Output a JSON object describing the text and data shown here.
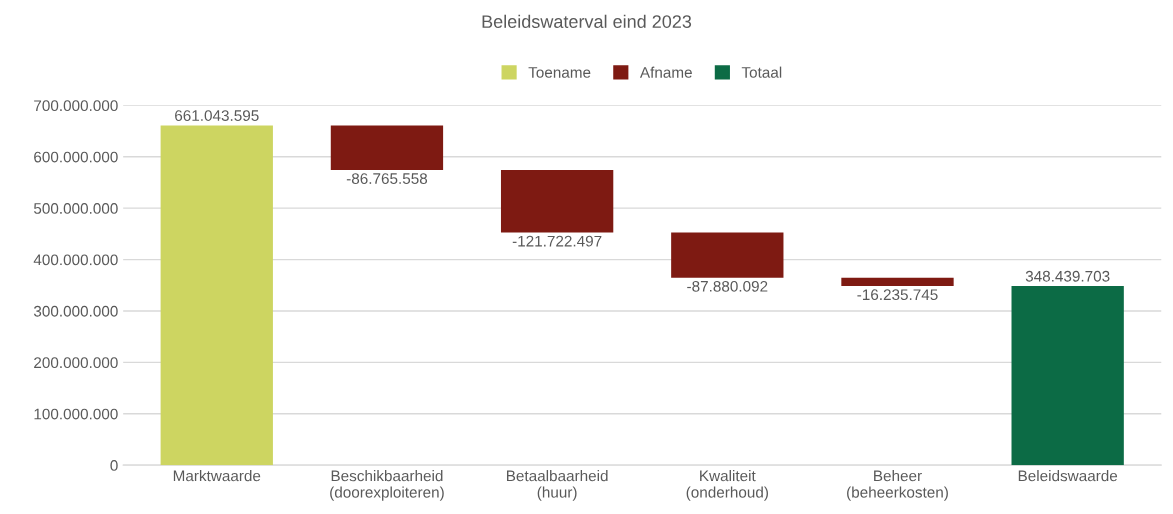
{
  "chart_data": {
    "type": "bar",
    "title": "Beleidswaterval eind 2023",
    "categories": [
      "Marktwaarde",
      "Beschikbaarheid\n(doorexploiteren)",
      "Betaalbaarheid\n(huur)",
      "Kwaliteit\n(onderhoud)",
      "Beheer\n(beheerkosten)",
      "Beleidswaarde"
    ],
    "series": [
      {
        "name": "Toename",
        "color": "#cdd561",
        "values": [
          661043595,
          null,
          null,
          null,
          null,
          null
        ],
        "base": [
          0,
          null,
          null,
          null,
          null,
          null
        ]
      },
      {
        "name": "Afname",
        "color": "#7e1a12",
        "values": [
          null,
          -86765558,
          -121722497,
          -87880092,
          -16235745,
          null
        ],
        "base": [
          null,
          661043595,
          574278037,
          452555540,
          364675448,
          null
        ]
      },
      {
        "name": "Totaal",
        "color": "#0c6b45",
        "values": [
          null,
          null,
          null,
          null,
          null,
          348439703
        ],
        "base": [
          null,
          null,
          null,
          null,
          null,
          0
        ]
      }
    ],
    "value_labels": [
      "661.043.595",
      "-86.765.558",
      "-121.722.497",
      "-87.880.092",
      "-16.235.745",
      "348.439.703"
    ],
    "ylim": [
      0,
      700000000
    ],
    "yticks": [
      {
        "value": 0,
        "label": "0"
      },
      {
        "value": 100000000,
        "label": "100.000.000"
      },
      {
        "value": 200000000,
        "label": "200.000.000"
      },
      {
        "value": 300000000,
        "label": "300.000.000"
      },
      {
        "value": 400000000,
        "label": "400.000.000"
      },
      {
        "value": 500000000,
        "label": "500.000.000"
      },
      {
        "value": 600000000,
        "label": "600.000.000"
      },
      {
        "value": 700000000,
        "label": "700.000.000"
      }
    ],
    "grid": "y",
    "legend": "top"
  }
}
